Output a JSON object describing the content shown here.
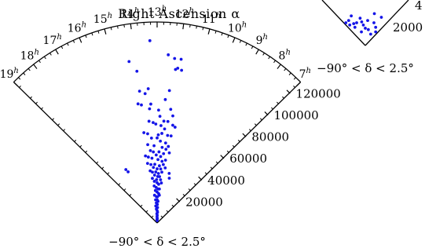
{
  "chart_data": [
    {
      "type": "scatter",
      "projection": "wedge",
      "title": "Right Ascension α",
      "caption": "−90° < δ < 2.5°",
      "angular_ticks": [
        "19h",
        "18h",
        "17h",
        "16h",
        "15h",
        "14h",
        "13h",
        "12h",
        "11h",
        "10h",
        "9h",
        "8h",
        "7h"
      ],
      "radial_ticks": [
        20000,
        40000,
        60000,
        80000,
        100000,
        120000
      ],
      "radial_range": [
        0,
        130000
      ],
      "angular_range_hours": [
        7,
        19
      ],
      "point_color": "#1515e8",
      "points": [
        [
          13.3,
          118000
        ],
        [
          12.5,
          109000
        ],
        [
          12.2,
          107000
        ],
        [
          11.9,
          107000
        ],
        [
          14.3,
          106000
        ],
        [
          14.0,
          99000
        ],
        [
          12.0,
          101000
        ],
        [
          11.8,
          100000
        ],
        [
          12.1,
          100000
        ],
        [
          14.0,
          86000
        ],
        [
          13.5,
          87000
        ],
        [
          12.3,
          86000
        ],
        [
          12.5,
          80000
        ],
        [
          13.7,
          84000
        ],
        [
          14.2,
          78000
        ],
        [
          14.0,
          77000
        ],
        [
          13.5,
          74000
        ],
        [
          13.4,
          77000
        ],
        [
          12.9,
          73000
        ],
        [
          12.1,
          74000
        ],
        [
          11.9,
          70000
        ],
        [
          12.8,
          69000
        ],
        [
          13.1,
          64000
        ],
        [
          12.2,
          66000
        ],
        [
          12.5,
          66000
        ],
        [
          11.8,
          64000
        ],
        [
          11.6,
          63000
        ],
        [
          13.6,
          66000
        ],
        [
          13.3,
          65000
        ],
        [
          12.7,
          63000
        ],
        [
          14.1,
          59000
        ],
        [
          13.8,
          58000
        ],
        [
          12.6,
          58000
        ],
        [
          12.4,
          61000
        ],
        [
          12.9,
          57000
        ],
        [
          12.1,
          57000
        ],
        [
          11.8,
          57000
        ],
        [
          13.5,
          55000
        ],
        [
          13.0,
          55000
        ],
        [
          12.7,
          53000
        ],
        [
          12.2,
          52000
        ],
        [
          11.9,
          50000
        ],
        [
          13.9,
          51000
        ],
        [
          13.3,
          50000
        ],
        [
          12.5,
          49000
        ],
        [
          12.1,
          48000
        ],
        [
          13.7,
          47000
        ],
        [
          13.4,
          46000
        ],
        [
          12.8,
          46000
        ],
        [
          12.3,
          45000
        ],
        [
          11.7,
          46000
        ],
        [
          14.3,
          44000
        ],
        [
          14.0,
          43000
        ],
        [
          13.1,
          44000
        ],
        [
          12.6,
          43000
        ],
        [
          13.6,
          42000
        ],
        [
          12.9,
          41000
        ],
        [
          12.4,
          40000
        ],
        [
          12.0,
          41000
        ],
        [
          14.2,
          39000
        ],
        [
          13.8,
          38000
        ],
        [
          13.3,
          38000
        ],
        [
          12.7,
          37000
        ],
        [
          12.2,
          38000
        ],
        [
          13.5,
          36000
        ],
        [
          13.0,
          35000
        ],
        [
          12.5,
          35000
        ],
        [
          11.9,
          36000
        ],
        [
          14.0,
          34000
        ],
        [
          13.7,
          33000
        ],
        [
          13.2,
          33000
        ],
        [
          12.8,
          32000
        ],
        [
          12.3,
          33000
        ],
        [
          13.4,
          31000
        ],
        [
          12.9,
          30000
        ],
        [
          12.6,
          30000
        ],
        [
          13.8,
          29000
        ],
        [
          13.1,
          28000
        ],
        [
          12.4,
          28000
        ],
        [
          13.5,
          27000
        ],
        [
          13.0,
          26000
        ],
        [
          12.7,
          25000
        ],
        [
          12.2,
          26000
        ],
        [
          13.6,
          24000
        ],
        [
          13.2,
          23000
        ],
        [
          12.8,
          22000
        ],
        [
          12.5,
          22000
        ],
        [
          13.4,
          21000
        ],
        [
          13.0,
          20000
        ],
        [
          12.6,
          19000
        ],
        [
          13.7,
          18000
        ],
        [
          13.2,
          17000
        ],
        [
          12.9,
          17000
        ],
        [
          12.4,
          18000
        ],
        [
          13.5,
          15000
        ],
        [
          13.0,
          15000
        ],
        [
          12.7,
          14000
        ],
        [
          13.3,
          13000
        ],
        [
          12.9,
          12000
        ],
        [
          13.6,
          11000
        ],
        [
          13.1,
          10000
        ],
        [
          12.8,
          10000
        ],
        [
          13.4,
          9000
        ],
        [
          13.0,
          8000
        ],
        [
          12.7,
          7000
        ],
        [
          13.2,
          6000
        ],
        [
          12.9,
          5000
        ],
        [
          13.1,
          4000
        ],
        [
          12.8,
          3000
        ],
        [
          13.0,
          2500
        ],
        [
          13.3,
          2000
        ],
        [
          12.9,
          1500
        ],
        [
          17.0,
          40000
        ],
        [
          16.9,
          38000
        ],
        [
          11.2,
          33000
        ],
        [
          11.0,
          30000
        ]
      ]
    },
    {
      "type": "scatter",
      "projection": "wedge",
      "radial_ticks_visible": [
        "2000"
      ],
      "partial_tick_label": "4",
      "caption": "−90° < δ < 2.5°",
      "point_color": "#1515e8",
      "points": [
        [
          0.3,
          0.9
        ],
        [
          0.4,
          0.8
        ],
        [
          0.5,
          0.7
        ],
        [
          0.35,
          0.6
        ],
        [
          0.55,
          0.55
        ],
        [
          0.45,
          0.45
        ],
        [
          0.6,
          0.4
        ],
        [
          0.3,
          0.35
        ],
        [
          0.5,
          0.3
        ],
        [
          0.65,
          0.25
        ],
        [
          0.4,
          0.2
        ],
        [
          0.55,
          0.15
        ],
        [
          0.45,
          0.1
        ],
        [
          0.5,
          0.05
        ],
        [
          0.7,
          0.65
        ],
        [
          0.25,
          0.75
        ],
        [
          0.62,
          0.8
        ],
        [
          0.38,
          0.5
        ],
        [
          0.52,
          0.42
        ],
        [
          0.48,
          0.22
        ]
      ]
    }
  ]
}
